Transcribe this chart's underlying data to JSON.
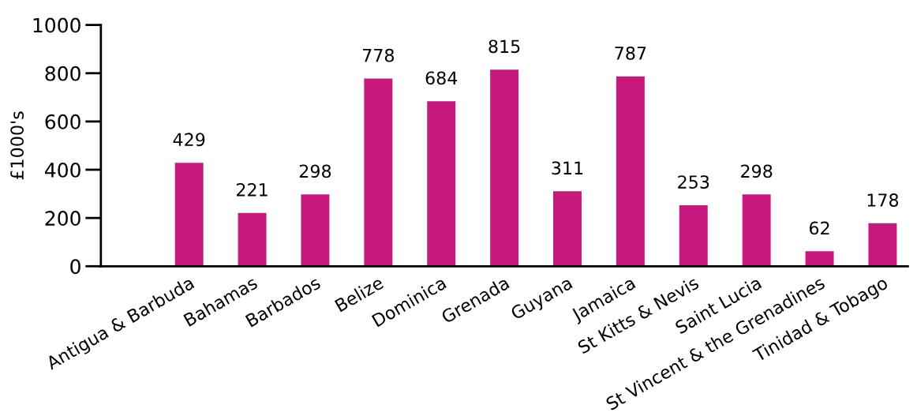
{
  "chart_data": {
    "type": "bar",
    "ylabel": "£1000's",
    "categories": [
      "Antigua & Barbuda",
      "Bahamas",
      "Barbados",
      "Belize",
      "Dominica",
      "Grenada",
      "Guyana",
      "Jamaica",
      "St Kitts & Nevis",
      "Saint Lucia",
      "St Vincent & the Grenadines",
      "Tinidad & Tobago"
    ],
    "values": [
      429,
      221,
      298,
      778,
      684,
      815,
      311,
      787,
      253,
      298,
      62,
      178
    ],
    "color": "#c8197e",
    "ylim": [
      0,
      1000
    ],
    "yticks": [
      0,
      200,
      400,
      600,
      800,
      1000
    ],
    "data_labels": true,
    "grid": false,
    "legend": false
  }
}
